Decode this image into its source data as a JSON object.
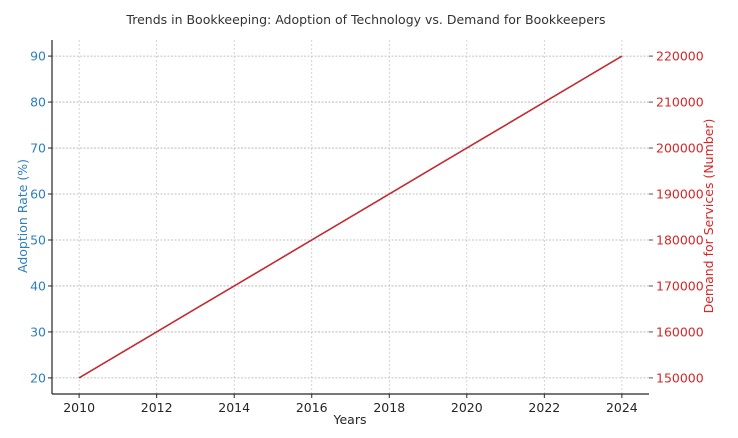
{
  "chart_data": {
    "type": "line",
    "title": "Trends in Bookkeeping: Adoption of Technology vs. Demand for Bookkeepers",
    "xlabel": "Years",
    "ylabel": "Adoption Rate (%)",
    "ylabel_right": "Demand for Services (Number)",
    "x": [
      2010,
      2011,
      2012,
      2013,
      2014,
      2015,
      2016,
      2017,
      2018,
      2019,
      2020,
      2021,
      2022,
      2023,
      2024
    ],
    "x_ticks": [
      "2010",
      "2012",
      "2014",
      "2016",
      "2018",
      "2020",
      "2022",
      "2024"
    ],
    "y_ticks_left": [
      "20",
      "30",
      "40",
      "50",
      "60",
      "70",
      "80",
      "90"
    ],
    "y_ticks_right": [
      "150000",
      "160000",
      "170000",
      "180000",
      "190000",
      "200000",
      "210000",
      "220000"
    ],
    "ylim": [
      16.5,
      93.5
    ],
    "ylim_right": [
      146500,
      223500
    ],
    "xlim": [
      2009.3,
      2024.7
    ],
    "grid": true,
    "legend": null,
    "series": [
      {
        "name": "Adoption Rate (%)",
        "axis": "left",
        "color": "#1f77b4",
        "values": [
          20,
          25,
          30,
          35,
          40,
          45,
          50,
          55,
          60,
          65,
          70,
          75,
          80,
          85,
          90
        ]
      },
      {
        "name": "Demand for Services (Number)",
        "axis": "right",
        "color": "#d62728",
        "values": [
          150000,
          155000,
          160000,
          165000,
          170000,
          175000,
          180000,
          185000,
          190000,
          195000,
          200000,
          205000,
          210000,
          215000,
          220000
        ]
      }
    ]
  },
  "colors": {
    "left_axis": "#2e7fbf",
    "right_axis": "#d62728",
    "grid": "#c8c8c8",
    "spine": "#262626"
  }
}
